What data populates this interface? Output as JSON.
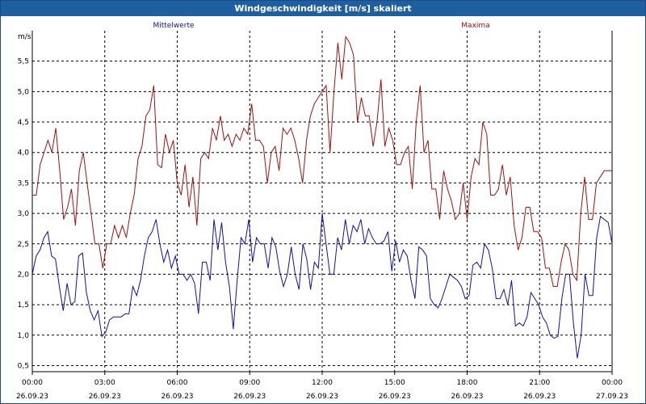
{
  "window": {
    "title": "Windgeschwindigkeit [m/s] skaliert"
  },
  "chart_data": {
    "type": "line",
    "title": "Windgeschwindigkeit [m/s] skaliert",
    "ylabel": "m/s",
    "ylim": [
      0.4,
      6.0
    ],
    "yticks": [
      "0,5",
      "1,0",
      "1,5",
      "2,0",
      "2,5",
      "3,0",
      "3,5",
      "4,0",
      "4,5",
      "5,0",
      "5,5"
    ],
    "ytick_values": [
      0.5,
      1.0,
      1.5,
      2.0,
      2.5,
      3.0,
      3.5,
      4.0,
      4.5,
      5.0,
      5.5
    ],
    "xticks": [
      {
        "time": "00:00",
        "date": "26.09.23"
      },
      {
        "time": "03:00",
        "date": "26.09.23"
      },
      {
        "time": "06:00",
        "date": "26.09.23"
      },
      {
        "time": "09:00",
        "date": "26.09.23"
      },
      {
        "time": "12:00",
        "date": "26.09.23"
      },
      {
        "time": "15:00",
        "date": "26.09.23"
      },
      {
        "time": "18:00",
        "date": "26.09.23"
      },
      {
        "time": "21:00",
        "date": "26.09.23"
      },
      {
        "time": "00:00",
        "date": "27.09.23"
      }
    ],
    "grid": true,
    "series": [
      {
        "name": "Mittelwerte",
        "color": "#1010b0",
        "values": [
          2.0,
          2.3,
          2.4,
          2.6,
          2.7,
          2.3,
          2.25,
          1.8,
          1.4,
          1.85,
          1.5,
          1.55,
          2.3,
          2.35,
          1.7,
          1.4,
          1.25,
          1.4,
          0.98,
          1.05,
          1.25,
          1.3,
          1.3,
          1.3,
          1.35,
          1.35,
          1.8,
          1.65,
          1.9,
          2.3,
          2.6,
          2.7,
          2.9,
          2.5,
          2.2,
          2.4,
          2.1,
          2.3,
          2.0,
          2.0,
          1.9,
          2.0,
          1.85,
          1.35,
          2.2,
          2.2,
          1.9,
          2.9,
          2.4,
          2.85,
          2.2,
          1.8,
          1.1,
          1.9,
          2.6,
          2.5,
          2.9,
          2.2,
          2.6,
          2.5,
          2.5,
          2.1,
          2.6,
          2.45,
          2.05,
          1.8,
          2.0,
          2.45,
          2.0,
          1.75,
          2.5,
          2.25,
          1.75,
          2.2,
          2.1,
          3.0,
          2.5,
          2.0,
          2.0,
          2.6,
          2.4,
          2.9,
          2.5,
          2.8,
          2.7,
          2.9,
          2.5,
          2.75,
          2.6,
          2.5,
          2.5,
          2.55,
          2.7,
          2.05,
          2.55,
          2.2,
          2.4,
          2.3,
          1.9,
          1.6,
          2.45,
          2.4,
          2.3,
          1.6,
          1.5,
          1.45,
          1.6,
          1.8,
          2.0,
          1.95,
          1.9,
          1.8,
          1.6,
          1.65,
          2.15,
          2.2,
          2.1,
          2.5,
          2.4,
          2.1,
          1.6,
          1.6,
          1.75,
          1.5,
          1.9,
          1.15,
          1.2,
          1.15,
          1.3,
          1.7,
          1.6,
          1.5,
          1.3,
          1.2,
          1.0,
          0.95,
          0.98,
          1.6,
          2.0,
          2.0,
          1.2,
          0.62,
          1.0,
          2.0,
          1.65,
          1.65,
          2.6,
          2.95,
          2.9,
          2.85,
          2.5
        ]
      },
      {
        "name": "Maxima",
        "color": "#a01010",
        "values": [
          3.3,
          3.3,
          3.8,
          4.0,
          4.2,
          4.0,
          4.4,
          3.7,
          2.9,
          3.1,
          3.4,
          2.8,
          3.7,
          4.0,
          3.5,
          3.0,
          2.5,
          2.5,
          2.1,
          2.5,
          2.5,
          2.8,
          2.6,
          2.8,
          2.6,
          3.0,
          3.3,
          3.9,
          4.1,
          4.6,
          4.7,
          5.1,
          3.8,
          3.75,
          4.3,
          4.0,
          4.2,
          3.5,
          3.3,
          3.8,
          3.1,
          3.6,
          2.8,
          3.9,
          4.0,
          3.9,
          4.4,
          4.2,
          4.6,
          4.2,
          4.3,
          4.1,
          4.3,
          4.2,
          4.4,
          4.3,
          4.8,
          4.2,
          4.2,
          4.1,
          3.5,
          4.0,
          4.1,
          3.7,
          4.4,
          4.3,
          4.4,
          4.2,
          3.9,
          3.5,
          4.2,
          4.6,
          4.8,
          4.9,
          5.0,
          5.1,
          4.0,
          5.0,
          5.8,
          5.2,
          5.9,
          5.8,
          5.6,
          4.5,
          4.9,
          4.6,
          4.6,
          4.1,
          4.5,
          5.2,
          4.1,
          4.4,
          4.2,
          3.8,
          3.8,
          4.0,
          4.1,
          3.4,
          4.5,
          5.1,
          4.0,
          4.2,
          3.4,
          3.4,
          2.9,
          3.7,
          3.4,
          3.2,
          2.9,
          3.0,
          3.5,
          2.9,
          3.6,
          3.9,
          3.8,
          4.5,
          4.3,
          3.3,
          3.3,
          3.4,
          3.8,
          3.3,
          3.6,
          2.8,
          2.4,
          2.6,
          3.1,
          3.1,
          2.7,
          2.7,
          2.6,
          2.1,
          2.1,
          1.8,
          1.8,
          2.2,
          2.5,
          2.4,
          2.0,
          1.9,
          3.0,
          3.6,
          2.9,
          2.9,
          3.5,
          3.6,
          3.7,
          3.7,
          3.7
        ]
      }
    ]
  }
}
